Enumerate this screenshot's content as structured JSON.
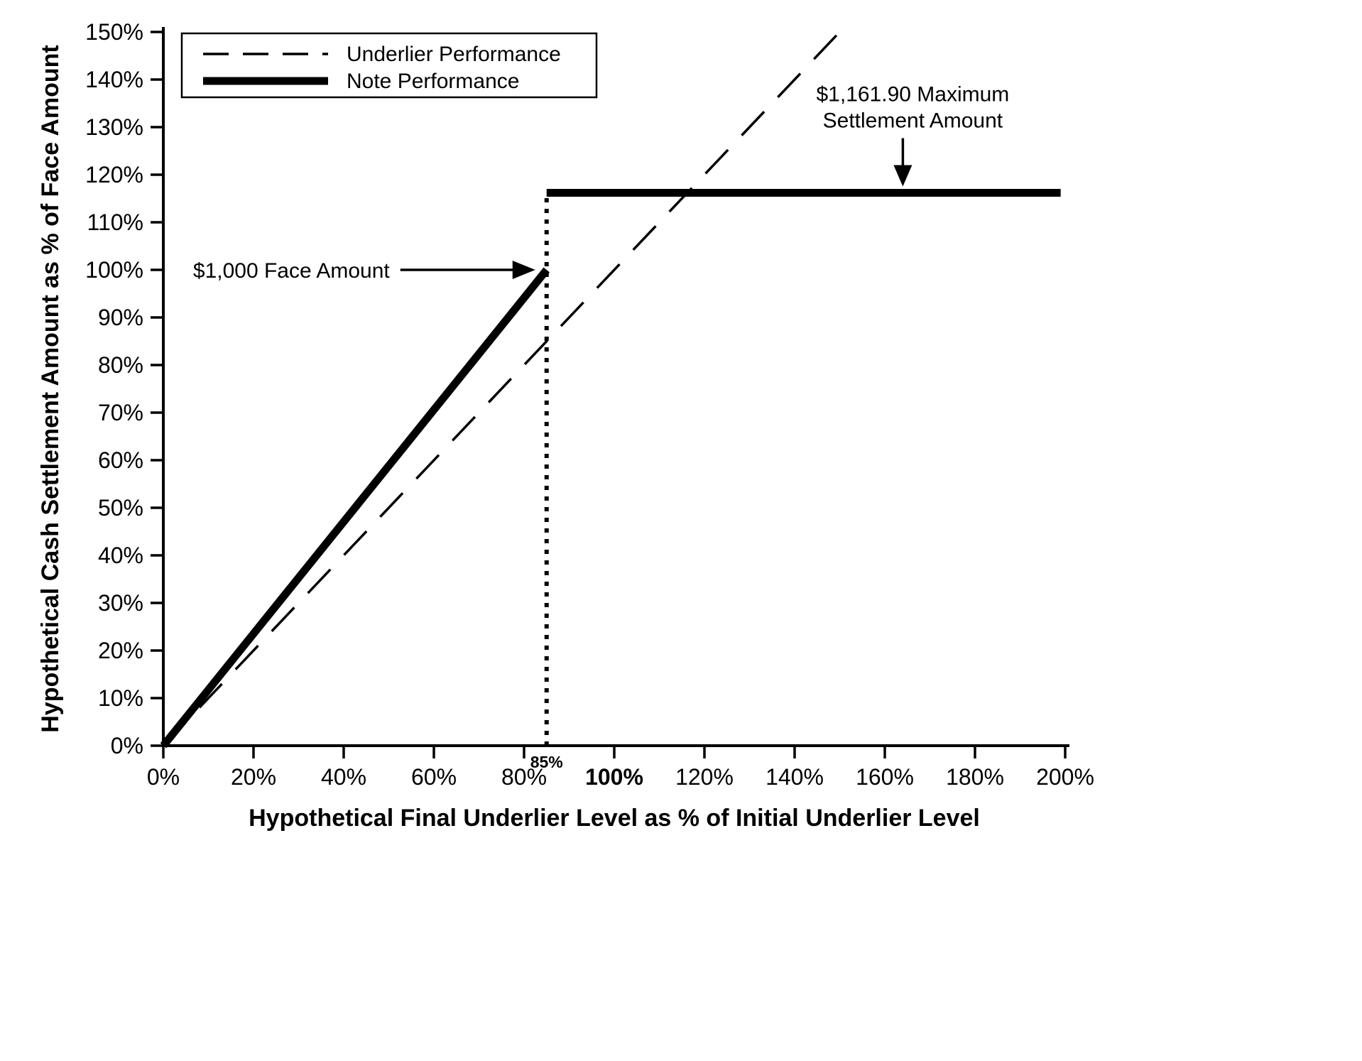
{
  "page": {
    "kind": "payout-profile-chart",
    "background": "#ffffff",
    "ink": "#000000"
  },
  "chart_data": {
    "type": "line",
    "title": "",
    "x_axis": {
      "label": "Hypothetical Final Underlier Level as % of Initial Underlier Level",
      "min": 0,
      "max": 200,
      "tick_step": 20,
      "tick_labels": [
        "0%",
        "20%",
        "40%",
        "60%",
        "80%",
        "100%",
        "120%",
        "140%",
        "160%",
        "180%",
        "200%"
      ],
      "bold_tick_label": "100%",
      "special_tick": {
        "value": 85,
        "label": "85%"
      }
    },
    "y_axis": {
      "label": "Hypothetical Cash Settlement Amount as % of Face Amount",
      "min": 0,
      "max": 150,
      "tick_step": 10,
      "tick_labels": [
        "0%",
        "10%",
        "20%",
        "30%",
        "40%",
        "50%",
        "60%",
        "70%",
        "80%",
        "90%",
        "100%",
        "110%",
        "120%",
        "130%",
        "140%",
        "150%"
      ]
    },
    "grid": false,
    "legend": {
      "position": "top-left",
      "entries": [
        {
          "label": "Underlier Performance",
          "style": "dashed"
        },
        {
          "label": "Note Performance",
          "style": "solid-thick"
        }
      ]
    },
    "series": [
      {
        "name": "Underlier Performance",
        "style": "dashed",
        "points": [
          [
            0,
            0
          ],
          [
            150,
            150
          ]
        ]
      },
      {
        "name": "Note Performance",
        "style": "solid-thick",
        "segments": [
          [
            [
              0,
              0
            ],
            [
              85,
              100
            ]
          ],
          [
            [
              85,
              116.19
            ],
            [
              199,
              116.19
            ]
          ]
        ]
      }
    ],
    "reference_lines": [
      {
        "type": "dotted-vertical",
        "x": 85,
        "y_from": 0,
        "y_to": 116.19
      }
    ],
    "annotations": [
      {
        "text": "$1,000 Face Amount",
        "arrow": "right",
        "target": {
          "x": 85,
          "y": 100
        }
      },
      {
        "lines": [
          "$1,161.90 Maximum",
          "Settlement Amount"
        ],
        "arrow": "down",
        "target": {
          "x": 164,
          "y": 116.19
        }
      }
    ],
    "key_values": {
      "face_amount": "$1,000",
      "maximum_settlement_amount": "$1,161.90",
      "buffer_cap_level_pct": "85%",
      "max_settlement_pct_of_face": 116.19
    }
  }
}
